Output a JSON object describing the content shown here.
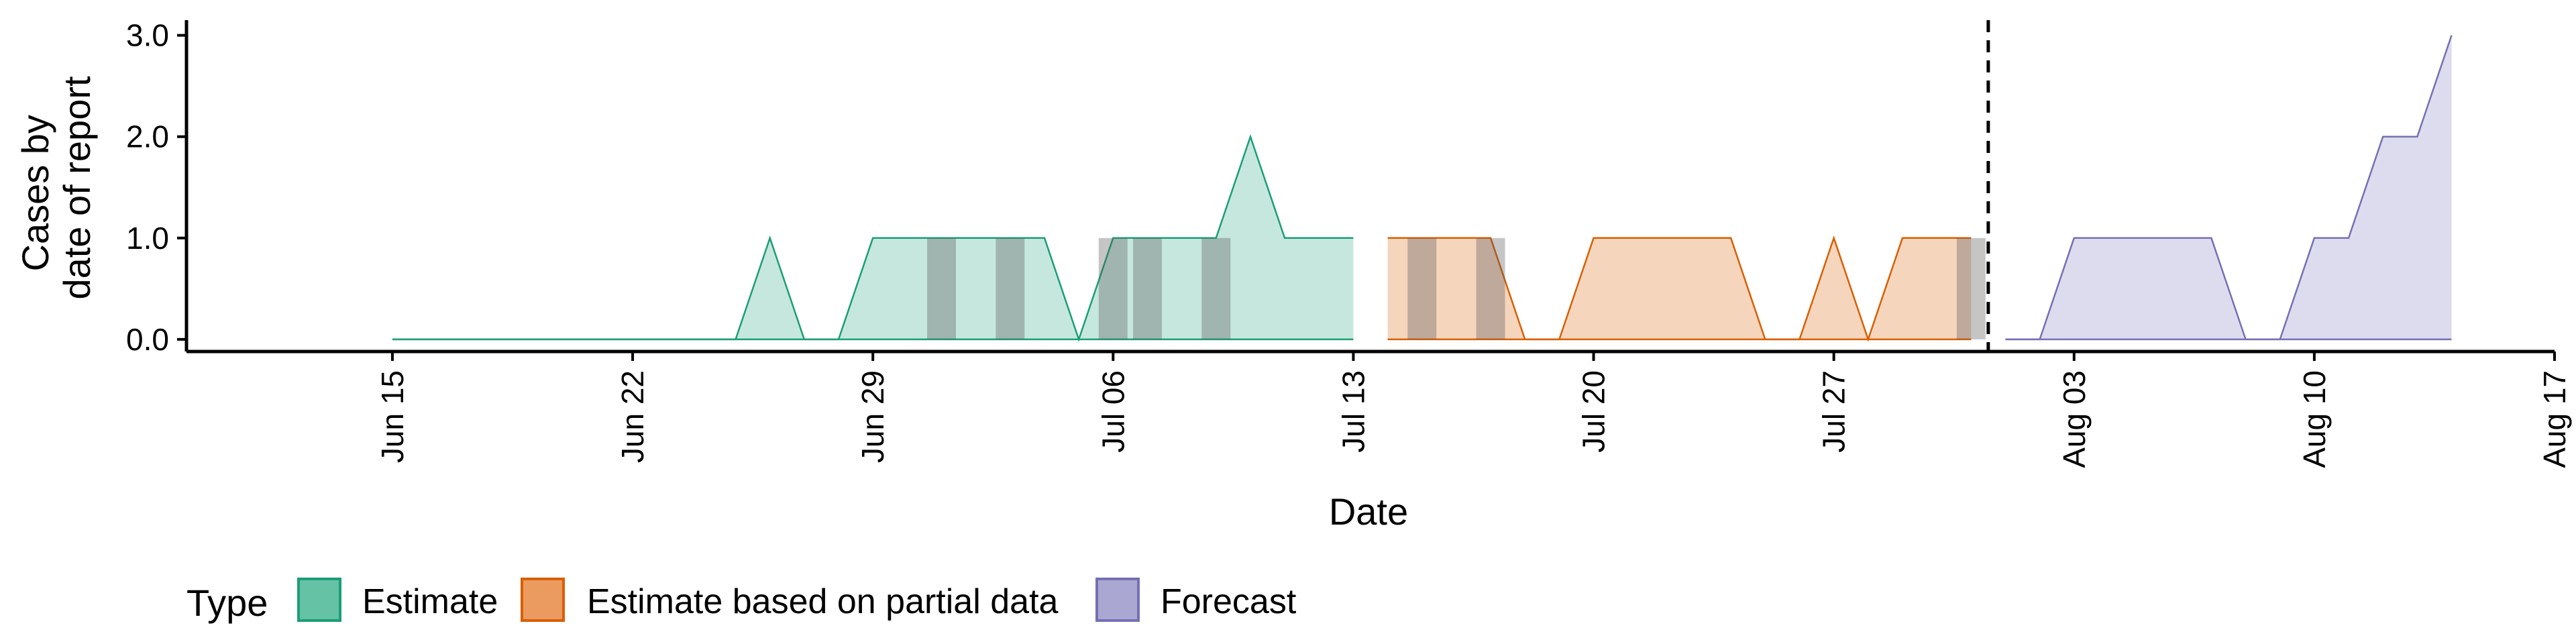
{
  "chart_data": {
    "type": "area",
    "title": "",
    "xlabel": "Date",
    "ylabel": [
      "Cases by",
      "date of report"
    ],
    "ylim": [
      -0.12,
      3.15
    ],
    "y_ticks": [
      "0.0",
      "1.0",
      "2.0",
      "3.0"
    ],
    "y_tick_values": [
      0,
      1,
      2,
      3
    ],
    "xlim": [
      "2020-06-09",
      "2020-08-17"
    ],
    "x_ticks": [
      "Jun 15",
      "Jun 22",
      "Jun 29",
      "Jul 06",
      "Jul 13",
      "Jul 20",
      "Jul 27",
      "Aug 03",
      "Aug 10",
      "Aug 17"
    ],
    "x_tick_dates": [
      "2020-06-15",
      "2020-06-22",
      "2020-06-29",
      "2020-07-06",
      "2020-07-13",
      "2020-07-20",
      "2020-07-27",
      "2020-08-03",
      "2020-08-10",
      "2020-08-17"
    ],
    "forecast_start": "2020-07-31",
    "grid": false,
    "legend_position": "bottom-left",
    "legend_title": "Type",
    "series": [
      {
        "name": "Estimate",
        "color": "#1b9e77",
        "fill": "#c6e7dd",
        "points": [
          [
            "2020-06-15",
            0
          ],
          [
            "2020-06-16",
            0
          ],
          [
            "2020-06-17",
            0
          ],
          [
            "2020-06-18",
            0
          ],
          [
            "2020-06-19",
            0
          ],
          [
            "2020-06-20",
            0
          ],
          [
            "2020-06-21",
            0
          ],
          [
            "2020-06-22",
            0
          ],
          [
            "2020-06-23",
            0
          ],
          [
            "2020-06-24",
            0
          ],
          [
            "2020-06-25",
            0
          ],
          [
            "2020-06-26",
            1
          ],
          [
            "2020-06-27",
            0
          ],
          [
            "2020-06-28",
            0
          ],
          [
            "2020-06-29",
            1
          ],
          [
            "2020-06-30",
            1
          ],
          [
            "2020-07-01",
            1
          ],
          [
            "2020-07-02",
            1
          ],
          [
            "2020-07-03",
            1
          ],
          [
            "2020-07-04",
            1
          ],
          [
            "2020-07-05",
            0
          ],
          [
            "2020-07-06",
            1
          ],
          [
            "2020-07-07",
            1
          ],
          [
            "2020-07-08",
            1
          ],
          [
            "2020-07-09",
            1
          ],
          [
            "2020-07-10",
            2
          ],
          [
            "2020-07-11",
            1
          ],
          [
            "2020-07-12",
            1
          ],
          [
            "2020-07-13",
            1
          ]
        ]
      },
      {
        "name": "Estimate based on partial data",
        "color": "#d95f02",
        "fill": "#f6d5bd",
        "points": [
          [
            "2020-07-14",
            1
          ],
          [
            "2020-07-15",
            1
          ],
          [
            "2020-07-16",
            1
          ],
          [
            "2020-07-17",
            1
          ],
          [
            "2020-07-18",
            0
          ],
          [
            "2020-07-19",
            0
          ],
          [
            "2020-07-20",
            1
          ],
          [
            "2020-07-21",
            1
          ],
          [
            "2020-07-22",
            1
          ],
          [
            "2020-07-23",
            1
          ],
          [
            "2020-07-24",
            1
          ],
          [
            "2020-07-25",
            0
          ],
          [
            "2020-07-26",
            0
          ],
          [
            "2020-07-27",
            1
          ],
          [
            "2020-07-28",
            0
          ],
          [
            "2020-07-29",
            1
          ],
          [
            "2020-07-30",
            1
          ],
          [
            "2020-07-31",
            1
          ]
        ]
      },
      {
        "name": "Forecast",
        "color": "#7570b3",
        "fill": "#dddcee",
        "points": [
          [
            "2020-08-01",
            0
          ],
          [
            "2020-08-02",
            0
          ],
          [
            "2020-08-03",
            1
          ],
          [
            "2020-08-04",
            1
          ],
          [
            "2020-08-05",
            1
          ],
          [
            "2020-08-06",
            1
          ],
          [
            "2020-08-07",
            1
          ],
          [
            "2020-08-08",
            0
          ],
          [
            "2020-08-09",
            0
          ],
          [
            "2020-08-10",
            1
          ],
          [
            "2020-08-11",
            1
          ],
          [
            "2020-08-12",
            2
          ],
          [
            "2020-08-13",
            2
          ],
          [
            "2020-08-14",
            3
          ]
        ]
      }
    ],
    "shaded_days": [
      "2020-07-01",
      "2020-07-03",
      "2020-07-06",
      "2020-07-07",
      "2020-07-09",
      "2020-07-15",
      "2020-07-17",
      "2020-07-31"
    ]
  },
  "legend": {
    "title": "Type",
    "items": [
      {
        "label": "Estimate",
        "color": "#1b9e77",
        "fill": "#66c2a5"
      },
      {
        "label": "Estimate based on partial data",
        "color": "#d95f02",
        "fill": "#ec9b60"
      },
      {
        "label": "Forecast",
        "color": "#7570b3",
        "fill": "#aaa7d3"
      }
    ]
  }
}
